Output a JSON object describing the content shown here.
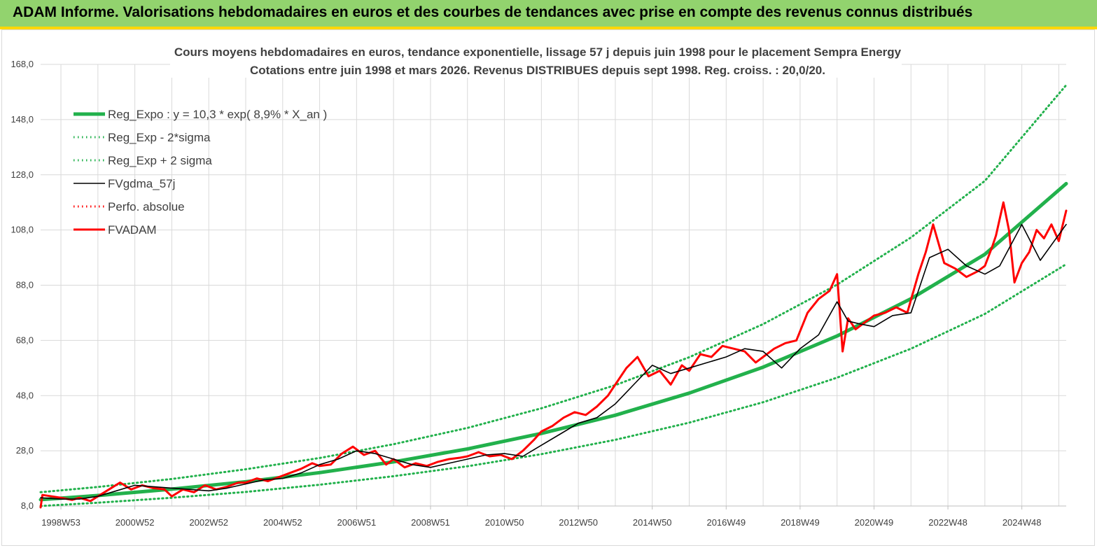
{
  "header": {
    "title": "ADAM Informe. Valorisations hebdomadaires en euros et des courbes de tendances avec prise en compte des revenus connus distribués"
  },
  "chart_data": {
    "type": "line",
    "title": "Cours moyens hebdomadaires en euros, tendance exponentielle, lissage 57 j depuis juin 1998 pour le placement Sempra Energy",
    "subtitle": "Cotations entre juin 1998 et mars 2026. Revenus DISTRIBUES depuis sept 1998. Reg. croiss. : 20,0/20.",
    "xlabel": "",
    "ylabel": "",
    "ylim": [
      8,
      168
    ],
    "xlim": [
      1998.45,
      2026.2
    ],
    "yticks": [
      "8,0",
      "28,0",
      "48,0",
      "68,0",
      "88,0",
      "108,0",
      "128,0",
      "148,0",
      "168,0"
    ],
    "xticks": [
      {
        "label": "1998W53",
        "x": 1999.0
      },
      {
        "label": "2000W52",
        "x": 2001.0
      },
      {
        "label": "2002W52",
        "x": 2003.0
      },
      {
        "label": "2004W52",
        "x": 2005.0
      },
      {
        "label": "2006W51",
        "x": 2007.0
      },
      {
        "label": "2008W51",
        "x": 2009.0
      },
      {
        "label": "2010W50",
        "x": 2011.0
      },
      {
        "label": "2012W50",
        "x": 2013.0
      },
      {
        "label": "2014W50",
        "x": 2015.0
      },
      {
        "label": "2016W49",
        "x": 2017.0
      },
      {
        "label": "2018W49",
        "x": 2019.0
      },
      {
        "label": "2020W49",
        "x": 2021.0
      },
      {
        "label": "2022W48",
        "x": 2023.0
      },
      {
        "label": "2024W48",
        "x": 2025.0
      }
    ],
    "grid": true,
    "legend_position": "top-left",
    "series": [
      {
        "name": "Reg_Expo : y = 10,3 * exp( 8,9% *  X_an )",
        "color": "#22b14c",
        "style": "solid-thick",
        "x": [
          1998.45,
          2000,
          2002,
          2004,
          2006,
          2008,
          2010,
          2012,
          2014,
          2016,
          2018,
          2020,
          2022,
          2024,
          2026.2
        ],
        "values": [
          10.3,
          11.8,
          14.1,
          16.8,
          20.1,
          24.0,
          28.7,
          34.3,
          40.9,
          48.9,
          58.3,
          69.6,
          83.1,
          99.2,
          124.8
        ]
      },
      {
        "name": "Reg_Exp - 2*sigma",
        "color": "#22b14c",
        "style": "dotted",
        "x": [
          1998.45,
          2000,
          2002,
          2004,
          2006,
          2008,
          2010,
          2012,
          2014,
          2016,
          2018,
          2020,
          2022,
          2024,
          2026.2
        ],
        "values": [
          8.0,
          9.2,
          11.0,
          13.1,
          15.7,
          18.8,
          22.4,
          26.8,
          32.0,
          38.2,
          45.6,
          54.5,
          65.0,
          77.6,
          95.6
        ]
      },
      {
        "name": "Reg_Exp + 2 sigma",
        "color": "#22b14c",
        "style": "dotted",
        "x": [
          1998.45,
          2000,
          2002,
          2004,
          2006,
          2008,
          2010,
          2012,
          2014,
          2016,
          2018,
          2020,
          2022,
          2024,
          2026.2
        ],
        "values": [
          13.0,
          14.9,
          17.8,
          21.3,
          25.4,
          30.4,
          36.3,
          43.4,
          51.8,
          61.9,
          73.9,
          88.2,
          105.3,
          125.8,
          160.5
        ]
      },
      {
        "name": "FVgdma_57j",
        "color": "#000000",
        "style": "solid",
        "x": [
          1998.45,
          1999,
          1999.5,
          2000,
          2000.5,
          2001,
          2001.5,
          2002,
          2002.5,
          2003,
          2003.5,
          2004,
          2004.5,
          2005,
          2005.5,
          2006,
          2006.5,
          2007,
          2007.5,
          2008,
          2008.5,
          2009,
          2009.5,
          2010,
          2010.5,
          2011,
          2011.5,
          2012,
          2012.5,
          2013,
          2013.5,
          2014,
          2014.5,
          2015,
          2015.5,
          2016,
          2016.5,
          2017,
          2017.5,
          2018,
          2018.5,
          2019,
          2019.5,
          2020,
          2020.3,
          2020.6,
          2021,
          2021.5,
          2022,
          2022.5,
          2023,
          2023.5,
          2024,
          2024.4,
          2024.6,
          2025,
          2025.5,
          2026.2
        ],
        "values": [
          11.0,
          10.5,
          10.5,
          11.5,
          13.5,
          15.5,
          15.0,
          14.5,
          14.0,
          13.5,
          14.5,
          16.0,
          17.5,
          18.0,
          20.0,
          23.0,
          25.0,
          28.0,
          27.0,
          25.0,
          23.0,
          22.0,
          23.5,
          25.0,
          26.5,
          27.0,
          26.0,
          30.0,
          34.0,
          38.0,
          40.0,
          45.0,
          52.0,
          59.0,
          56.0,
          58.0,
          60.0,
          62.0,
          65.0,
          64.0,
          58.0,
          65.0,
          70.0,
          82.0,
          75.0,
          74.0,
          73.0,
          77.0,
          78.0,
          98.0,
          101.0,
          95.0,
          92.0,
          95.0,
          100.0,
          110.0,
          97.0,
          110.0
        ]
      },
      {
        "name": "Perfo. absolue",
        "color": "#ff0000",
        "style": "dotted",
        "x": [],
        "values": []
      },
      {
        "name": "FVADAM",
        "color": "#ff0000",
        "style": "solid-thick",
        "x": [
          1998.45,
          1998.5,
          1999,
          1999.3,
          1999.5,
          1999.8,
          2000,
          2000.3,
          2000.6,
          2000.9,
          2001.2,
          2001.5,
          2001.8,
          2002,
          2002.3,
          2002.6,
          2002.9,
          2003.2,
          2003.5,
          2003.8,
          2004,
          2004.3,
          2004.6,
          2004.9,
          2005.2,
          2005.5,
          2005.8,
          2006,
          2006.3,
          2006.6,
          2006.9,
          2007.2,
          2007.5,
          2007.8,
          2008,
          2008.3,
          2008.6,
          2008.9,
          2009.2,
          2009.5,
          2009.8,
          2010,
          2010.3,
          2010.6,
          2010.9,
          2011.2,
          2011.5,
          2011.8,
          2012,
          2012.3,
          2012.6,
          2012.9,
          2013.2,
          2013.5,
          2013.8,
          2014,
          2014.3,
          2014.6,
          2014.9,
          2015.2,
          2015.5,
          2015.8,
          2016,
          2016.3,
          2016.6,
          2016.9,
          2017.2,
          2017.5,
          2017.8,
          2018,
          2018.3,
          2018.6,
          2018.9,
          2019.2,
          2019.5,
          2019.8,
          2020,
          2020.15,
          2020.3,
          2020.5,
          2020.7,
          2021,
          2021.3,
          2021.6,
          2021.9,
          2022.2,
          2022.4,
          2022.6,
          2022.9,
          2023.2,
          2023.5,
          2023.8,
          2024,
          2024.2,
          2024.3,
          2024.5,
          2024.65,
          2024.8,
          2025,
          2025.2,
          2025.4,
          2025.6,
          2025.8,
          2026.0,
          2026.2
        ],
        "values": [
          7.5,
          12.0,
          11.0,
          10.2,
          11.0,
          9.8,
          11.5,
          14.0,
          16.5,
          14.0,
          15.5,
          14.5,
          14.0,
          11.5,
          14.0,
          13.0,
          15.5,
          14.0,
          15.0,
          16.5,
          16.5,
          18.0,
          17.0,
          18.5,
          20.0,
          21.5,
          23.5,
          22.5,
          23.0,
          27.0,
          29.5,
          26.5,
          28.0,
          23.0,
          25.0,
          22.0,
          23.5,
          22.5,
          24.0,
          25.0,
          25.5,
          26.0,
          27.5,
          26.0,
          26.5,
          25.0,
          28.0,
          32.0,
          35.0,
          37.0,
          40.0,
          42.0,
          41.0,
          44.0,
          48.0,
          52.0,
          58.0,
          62.0,
          55.0,
          57.0,
          52.0,
          59.0,
          57.0,
          63.0,
          62.0,
          66.0,
          65.0,
          64.0,
          60.0,
          62.0,
          65.0,
          67.0,
          68.0,
          78.0,
          83.0,
          86.0,
          92.0,
          64.0,
          76.0,
          72.0,
          74.0,
          77.0,
          78.0,
          80.0,
          78.0,
          92.0,
          100.0,
          110.0,
          96.0,
          94.0,
          91.0,
          93.0,
          95.0,
          102.0,
          106.0,
          118.0,
          108.0,
          89.0,
          96.0,
          100.0,
          108.0,
          105.0,
          110.0,
          104.0,
          115.0
        ]
      }
    ]
  }
}
